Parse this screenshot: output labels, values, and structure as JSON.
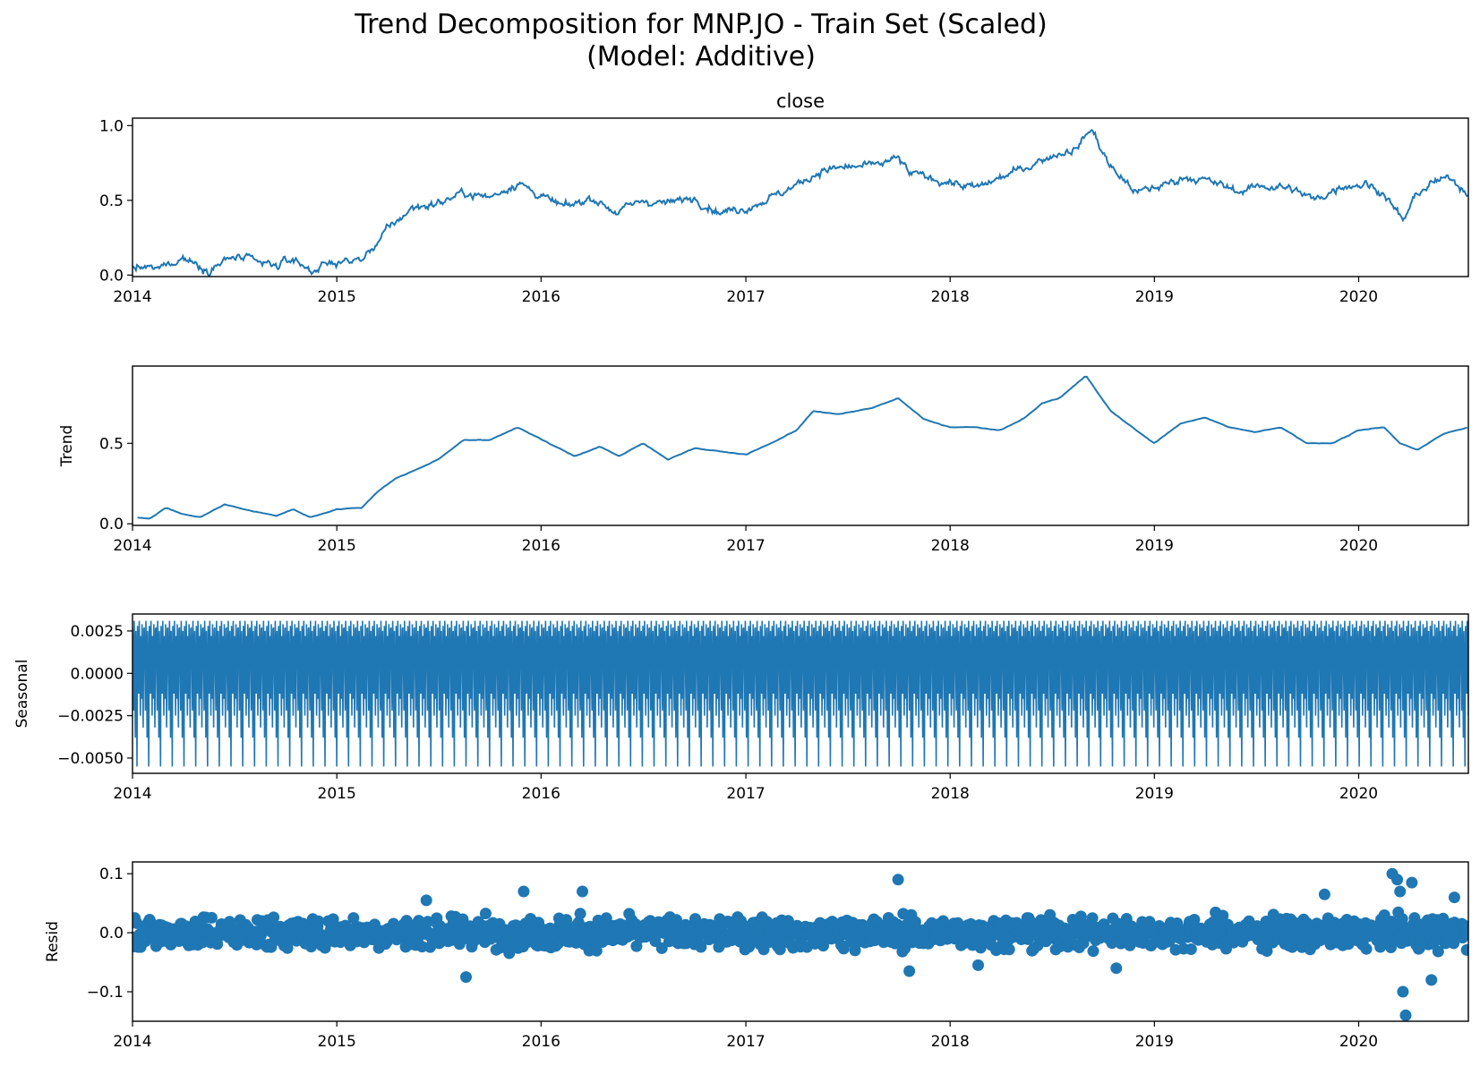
{
  "figure": {
    "title_line1": "Trend Decomposition for MNP.JO - Train Set (Scaled)",
    "title_line2": "(Model: Additive)",
    "line_color": "#1f77b4",
    "zero_line_color": "#000000"
  },
  "chart_data": [
    {
      "type": "line",
      "title": "close",
      "ylabel": "",
      "xlabel": "",
      "xlim": [
        "2014-01-01",
        "2020-07-15"
      ],
      "ylim": [
        -0.01,
        1.05
      ],
      "x_ticks": [
        "2014",
        "2015",
        "2016",
        "2017",
        "2018",
        "2019",
        "2020"
      ],
      "y_ticks": [
        "0.0",
        "0.5",
        "1.0"
      ],
      "series": [
        {
          "x": [
            "2014-01-01",
            "2014-02-15",
            "2014-04-01",
            "2014-05-15",
            "2014-07-01",
            "2014-08-15",
            "2014-09-15",
            "2014-10-15",
            "2014-11-15",
            "2015-01-01",
            "2015-02-15",
            "2015-04-01",
            "2015-05-15",
            "2015-07-01",
            "2015-08-15",
            "2015-10-01",
            "2015-11-20",
            "2016-01-15",
            "2016-02-15",
            "2016-04-01",
            "2016-05-15",
            "2016-07-01",
            "2016-08-15",
            "2016-10-01",
            "2016-11-15",
            "2017-01-01",
            "2017-02-15",
            "2017-04-01",
            "2017-05-15",
            "2017-07-01",
            "2017-08-15",
            "2017-10-01",
            "2017-10-20",
            "2017-11-15",
            "2018-01-01",
            "2018-02-15",
            "2018-04-01",
            "2018-05-15",
            "2018-07-01",
            "2018-08-15",
            "2018-09-10",
            "2018-10-15",
            "2018-12-01",
            "2019-01-15",
            "2019-03-01",
            "2019-04-15",
            "2019-06-01",
            "2019-07-15",
            "2019-09-01",
            "2019-10-15",
            "2019-12-01",
            "2020-01-15",
            "2020-02-15",
            "2020-03-20",
            "2020-04-15",
            "2020-05-15",
            "2020-06-15",
            "2020-07-15"
          ],
          "y": [
            0.05,
            0.04,
            0.12,
            0.04,
            0.12,
            0.08,
            0.06,
            0.11,
            0.03,
            0.09,
            0.1,
            0.3,
            0.45,
            0.48,
            0.55,
            0.52,
            0.62,
            0.5,
            0.45,
            0.52,
            0.42,
            0.5,
            0.48,
            0.52,
            0.42,
            0.45,
            0.52,
            0.6,
            0.7,
            0.72,
            0.73,
            0.78,
            0.68,
            0.66,
            0.62,
            0.58,
            0.65,
            0.72,
            0.8,
            0.85,
            0.98,
            0.72,
            0.55,
            0.6,
            0.66,
            0.62,
            0.56,
            0.6,
            0.58,
            0.5,
            0.6,
            0.61,
            0.55,
            0.36,
            0.55,
            0.62,
            0.65,
            0.55
          ]
        }
      ]
    },
    {
      "type": "line",
      "title": "",
      "ylabel": "Trend",
      "xlabel": "",
      "xlim": [
        "2014-01-01",
        "2020-07-15"
      ],
      "ylim": [
        -0.01,
        0.98
      ],
      "x_ticks": [
        "2014",
        "2015",
        "2016",
        "2017",
        "2018",
        "2019",
        "2020"
      ],
      "y_ticks": [
        "0.0",
        "0.5"
      ],
      "series": [
        {
          "x": [
            "2014-01-10",
            "2014-02-01",
            "2014-03-01",
            "2014-04-01",
            "2014-05-01",
            "2014-06-15",
            "2014-08-01",
            "2014-09-15",
            "2014-10-15",
            "2014-11-15",
            "2015-01-01",
            "2015-02-15",
            "2015-03-15",
            "2015-04-15",
            "2015-06-01",
            "2015-07-01",
            "2015-08-15",
            "2015-10-01",
            "2015-11-20",
            "2016-01-15",
            "2016-03-01",
            "2016-04-15",
            "2016-05-20",
            "2016-07-01",
            "2016-08-15",
            "2016-10-01",
            "2016-11-15",
            "2017-01-01",
            "2017-02-15",
            "2017-04-01",
            "2017-05-01",
            "2017-06-15",
            "2017-08-15",
            "2017-09-30",
            "2017-11-15",
            "2018-01-01",
            "2018-02-15",
            "2018-04-01",
            "2018-05-15",
            "2018-06-15",
            "2018-07-15",
            "2018-09-01",
            "2018-10-15",
            "2018-11-30",
            "2019-01-01",
            "2019-02-15",
            "2019-04-01",
            "2019-05-15",
            "2019-07-01",
            "2019-08-15",
            "2019-10-01",
            "2019-11-15",
            "2020-01-01",
            "2020-02-15",
            "2020-03-15",
            "2020-04-15",
            "2020-06-01",
            "2020-07-15"
          ],
          "y": [
            0.04,
            0.03,
            0.1,
            0.06,
            0.04,
            0.12,
            0.08,
            0.05,
            0.09,
            0.04,
            0.09,
            0.1,
            0.2,
            0.28,
            0.35,
            0.4,
            0.52,
            0.52,
            0.6,
            0.5,
            0.42,
            0.48,
            0.42,
            0.5,
            0.4,
            0.47,
            0.45,
            0.43,
            0.5,
            0.58,
            0.7,
            0.68,
            0.72,
            0.78,
            0.65,
            0.6,
            0.6,
            0.58,
            0.66,
            0.75,
            0.78,
            0.92,
            0.7,
            0.58,
            0.5,
            0.62,
            0.66,
            0.6,
            0.57,
            0.6,
            0.5,
            0.5,
            0.58,
            0.6,
            0.5,
            0.46,
            0.56,
            0.6
          ]
        }
      ]
    },
    {
      "type": "line",
      "title": "",
      "ylabel": "Seasonal",
      "xlabel": "",
      "xlim": [
        "2014-01-01",
        "2020-07-15"
      ],
      "ylim": [
        -0.0059,
        0.0035
      ],
      "x_ticks": [
        "2014",
        "2015",
        "2016",
        "2017",
        "2018",
        "2019",
        "2020"
      ],
      "y_ticks": [
        "0.0025",
        "0.0000",
        "−0.0025",
        "−0.0050"
      ],
      "period_days": 21,
      "cycles": 113,
      "cycle_pattern": [
        0.0027,
        0.0005,
        -0.0022,
        0.0031,
        0.0012,
        -0.0038,
        0.0025,
        0.0002,
        -0.0055,
        0.0028,
        0.0018,
        -0.0012,
        0.0031,
        0.0008,
        -0.0025,
        0.0022,
        -0.0015,
        0.0029,
        0.0004,
        -0.0032,
        0.0026
      ],
      "series": [
        {
          "pattern": "repeating"
        }
      ]
    },
    {
      "type": "scatter",
      "title": "",
      "ylabel": "Resid",
      "xlabel": "",
      "xlim": [
        "2014-01-01",
        "2020-07-15"
      ],
      "ylim": [
        -0.15,
        0.12
      ],
      "x_ticks": [
        "2014",
        "2015",
        "2016",
        "2017",
        "2018",
        "2019",
        "2020"
      ],
      "y_ticks": [
        "0.1",
        "0.0",
        "−0.1"
      ],
      "zero_line": true,
      "points_per_year": 250,
      "series": [
        {
          "x": [
            "2014-01-05",
            "2015-06-10",
            "2015-08-20",
            "2015-12-01",
            "2016-03-15",
            "2017-09-30",
            "2017-10-20",
            "2018-02-20",
            "2018-10-25",
            "2019-11-01",
            "2020-03-01",
            "2020-03-10",
            "2020-03-15",
            "2020-03-20",
            "2020-03-25",
            "2020-04-05",
            "2020-05-10",
            "2020-06-20"
          ],
          "y": [
            0.025,
            0.055,
            -0.075,
            0.07,
            0.07,
            0.09,
            -0.065,
            -0.055,
            -0.06,
            0.065,
            0.1,
            0.09,
            0.07,
            -0.1,
            -0.14,
            0.085,
            -0.08,
            0.06
          ]
        }
      ]
    }
  ]
}
